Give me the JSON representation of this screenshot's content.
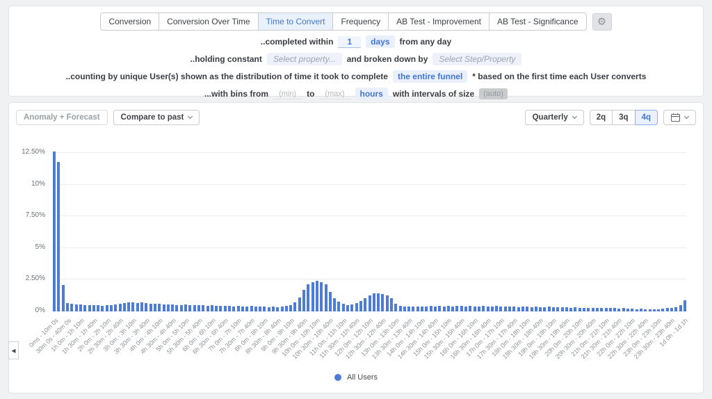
{
  "icons": {
    "gear": "⚙",
    "collapse_left": "◀"
  },
  "colors": {
    "accent": "#4176d6",
    "bar": "#4c7cd6",
    "active_tab_bg": "#e9f1fd",
    "pill_bg": "#e9effc",
    "select_pill_bg": "#eef1f9",
    "auto_pill_bg": "#c9cbcd"
  },
  "tabs": {
    "items": [
      {
        "label": "Conversion",
        "active": false
      },
      {
        "label": "Conversion Over Time",
        "active": false
      },
      {
        "label": "Time to Convert",
        "active": true
      },
      {
        "label": "Frequency",
        "active": false
      },
      {
        "label": "AB Test - Improvement",
        "active": false
      },
      {
        "label": "AB Test - Significance",
        "active": false
      }
    ]
  },
  "query": {
    "row1": {
      "prefix": "..completed within",
      "value": "1",
      "unit": "days",
      "suffix": "from any day"
    },
    "row2": {
      "prefix": "..holding constant",
      "select_property": "Select property...",
      "middle": "and broken down by",
      "select_breakdown": "Select Step/Property"
    },
    "row3": {
      "prefix": "..counting by unique User(s) shown as the distribution of time it took to complete",
      "pill": "the entire funnel",
      "suffix": "* based on the first time each User converts"
    },
    "row4": {
      "prefix": "...with bins from",
      "min_placeholder": "(min)",
      "to": "to",
      "max_placeholder": "(max)",
      "unit": "hours",
      "middle": "with intervals of size",
      "auto": "(auto)"
    }
  },
  "toolbar": {
    "anomaly_button": "Anomaly + Forecast",
    "compare_button": "Compare to past",
    "granularity_button": "Quarterly",
    "range_options": [
      {
        "label": "2q",
        "active": false
      },
      {
        "label": "3q",
        "active": false
      },
      {
        "label": "4q",
        "active": true
      }
    ]
  },
  "legend": {
    "label": "All Users"
  },
  "chart_data": {
    "type": "bar",
    "title": "",
    "xlabel": "",
    "ylabel": "",
    "series_name": "All Users",
    "bar_color": "#4c7cd6",
    "ylim": [
      0,
      12.5
    ],
    "grid": true,
    "legend_position": "bottom",
    "y_ticks": [
      {
        "label": "0%",
        "value": 0
      },
      {
        "label": "2.50%",
        "value": 2.5
      },
      {
        "label": "5%",
        "value": 5
      },
      {
        "label": "7.50%",
        "value": 7.5
      },
      {
        "label": "10%",
        "value": 10
      },
      {
        "label": "12.50%",
        "value": 12.5
      }
    ],
    "bin_width_minutes": 10,
    "label_every_n_bars": 3,
    "x_tick_labels": [
      "0ms - 10m 0s",
      "30m 0s - 40m 0s",
      "1h 0m - 1h 10m",
      "1h 30m - 1h 40m",
      "2h 0m - 2h 10m",
      "2h 30m - 2h 40m",
      "3h 0m - 3h 10m",
      "3h 30m - 3h 40m",
      "4h 0m - 4h 10m",
      "4h 30m - 4h 40m",
      "5h 0m - 5h 10m",
      "5h 30m - 5h 40m",
      "6h 0m - 6h 10m",
      "6h 30m - 6h 40m",
      "7h 0m - 7h 10m",
      "7h 30m - 7h 40m",
      "8h 0m - 8h 10m",
      "8h 30m - 8h 40m",
      "9h 0m - 9h 10m",
      "9h 30m - 9h 40m",
      "10h 0m - 10h 10m",
      "10h 30m - 10h 40m",
      "11h 0m - 11h 10m",
      "11h 30m - 11h 40m",
      "12h 0m - 12h 10m",
      "12h 30m - 12h 40m",
      "13h 0m - 13h 10m",
      "13h 30m - 13h 40m",
      "14h 0m - 14h 10m",
      "14h 30m - 14h 40m",
      "15h 0m - 15h 10m",
      "15h 30m - 15h 40m",
      "16h 0m - 16h 10m",
      "16h 30m - 16h 40m",
      "17h 0m - 17h 10m",
      "17h 30m - 17h 40m",
      "18h 0m - 18h 10m",
      "18h 30m - 18h 40m",
      "19h 0m - 19h 10m",
      "19h 30m - 19h 40m",
      "20h 0m - 20h 10m",
      "20h 30m - 20h 40m",
      "21h 0m - 21h 10m",
      "21h 30m - 21h 40m",
      "22h 0m - 22h 10m",
      "22h 30m - 22h 40m",
      "23h 0m - 23h 10m",
      "23h 30m - 23h 40m",
      "1d 0h - 1d 1h"
    ],
    "values": [
      12.6,
      11.8,
      2.1,
      0.65,
      0.6,
      0.55,
      0.55,
      0.5,
      0.5,
      0.5,
      0.5,
      0.45,
      0.5,
      0.5,
      0.55,
      0.6,
      0.65,
      0.7,
      0.7,
      0.65,
      0.7,
      0.65,
      0.6,
      0.6,
      0.6,
      0.55,
      0.55,
      0.55,
      0.5,
      0.5,
      0.55,
      0.5,
      0.5,
      0.5,
      0.5,
      0.45,
      0.5,
      0.45,
      0.45,
      0.45,
      0.45,
      0.4,
      0.45,
      0.4,
      0.4,
      0.45,
      0.4,
      0.4,
      0.4,
      0.35,
      0.4,
      0.35,
      0.4,
      0.45,
      0.5,
      0.7,
      1.1,
      1.7,
      2.15,
      2.3,
      2.4,
      2.3,
      2.15,
      1.55,
      1.05,
      0.75,
      0.6,
      0.5,
      0.55,
      0.65,
      0.85,
      1.05,
      1.25,
      1.4,
      1.4,
      1.35,
      1.25,
      1.05,
      0.6,
      0.45,
      0.4,
      0.4,
      0.4,
      0.4,
      0.4,
      0.4,
      0.45,
      0.4,
      0.45,
      0.4,
      0.45,
      0.4,
      0.45,
      0.45,
      0.4,
      0.45,
      0.4,
      0.4,
      0.45,
      0.4,
      0.4,
      0.45,
      0.4,
      0.4,
      0.4,
      0.4,
      0.35,
      0.4,
      0.4,
      0.35,
      0.4,
      0.35,
      0.35,
      0.4,
      0.35,
      0.35,
      0.35,
      0.35,
      0.3,
      0.35,
      0.3,
      0.3,
      0.3,
      0.3,
      0.3,
      0.25,
      0.3,
      0.25,
      0.25,
      0.2,
      0.25,
      0.2,
      0.2,
      0.15,
      0.2,
      0.15,
      0.15,
      0.15,
      0.15,
      0.2,
      0.25,
      0.3,
      0.35,
      0.5,
      0.9
    ]
  }
}
